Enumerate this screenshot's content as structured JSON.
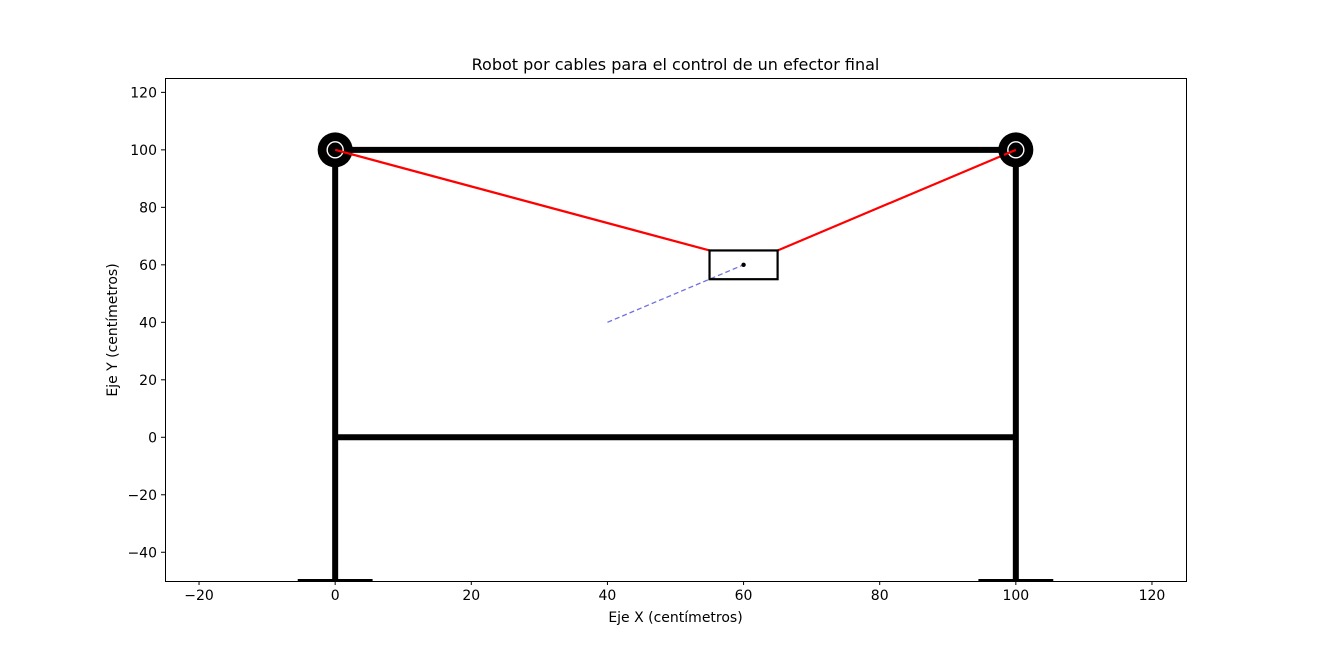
{
  "chart_data": {
    "type": "line",
    "title": "Robot por cables para el control de un efector final",
    "xlabel": "Eje X (centímetros)",
    "ylabel": "Eje Y (centímetros)",
    "xlim": [
      -25,
      125
    ],
    "ylim": [
      -50,
      125
    ],
    "xticks": [
      -20,
      0,
      20,
      40,
      60,
      80,
      100,
      120
    ],
    "yticks": [
      -40,
      -20,
      0,
      20,
      40,
      60,
      80,
      100,
      120
    ],
    "grid": false,
    "frame": {
      "color": "#000000",
      "segments": [
        {
          "name": "left-post",
          "x": [
            0,
            0
          ],
          "y": [
            -50,
            100
          ]
        },
        {
          "name": "right-post",
          "x": [
            100,
            100
          ],
          "y": [
            -50,
            100
          ]
        },
        {
          "name": "top-beam",
          "x": [
            0,
            100
          ],
          "y": [
            100,
            100
          ]
        },
        {
          "name": "bottom-beam",
          "x": [
            0,
            100
          ],
          "y": [
            0,
            0
          ]
        },
        {
          "name": "left-foot",
          "x": [
            -5.5,
            5.5
          ],
          "y": [
            -50,
            -50
          ]
        },
        {
          "name": "right-foot",
          "x": [
            94.5,
            105.5
          ],
          "y": [
            -50,
            -50
          ]
        }
      ]
    },
    "pulleys": [
      {
        "name": "left-pulley",
        "x": 0,
        "y": 100
      },
      {
        "name": "right-pulley",
        "x": 100,
        "y": 100
      }
    ],
    "cables": {
      "color": "#ff0000",
      "segments": [
        {
          "name": "left-cable",
          "x": [
            0,
            55
          ],
          "y": [
            100,
            65
          ]
        },
        {
          "name": "right-cable",
          "x": [
            100,
            65
          ],
          "y": [
            100,
            65
          ]
        }
      ]
    },
    "effector": {
      "center": {
        "x": 60,
        "y": 60
      },
      "corners_x": [
        55,
        65
      ],
      "corners_y": [
        55,
        65
      ],
      "color": "#000000"
    },
    "trajectory": {
      "color": "#7070e0",
      "style": "dashed",
      "x": [
        40,
        60
      ],
      "y": [
        40,
        60
      ]
    }
  }
}
